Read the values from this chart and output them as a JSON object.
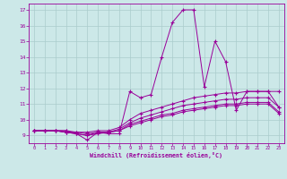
{
  "xlabel": "Windchill (Refroidissement éolien,°C)",
  "bg_color": "#cce8e8",
  "line_color": "#990099",
  "grid_color": "#aacccc",
  "xmin": 0,
  "xmax": 23,
  "ymin": 9,
  "ymax": 17,
  "yticks": [
    9,
    10,
    11,
    12,
    13,
    14,
    15,
    16,
    17
  ],
  "xticks": [
    0,
    1,
    2,
    3,
    4,
    5,
    6,
    7,
    8,
    9,
    10,
    11,
    12,
    13,
    14,
    15,
    16,
    17,
    18,
    19,
    20,
    21,
    22,
    23
  ],
  "lines": [
    [
      9.3,
      9.3,
      9.3,
      9.3,
      9.1,
      8.7,
      9.2,
      9.1,
      9.1,
      11.8,
      11.4,
      11.6,
      14.0,
      16.2,
      17.0,
      17.0,
      12.1,
      15.0,
      13.7,
      10.6,
      11.8,
      11.8,
      11.8,
      10.8
    ],
    [
      9.3,
      9.3,
      9.3,
      9.3,
      9.2,
      9.2,
      9.3,
      9.3,
      9.5,
      10.0,
      10.4,
      10.6,
      10.8,
      11.0,
      11.2,
      11.4,
      11.5,
      11.6,
      11.7,
      11.7,
      11.8,
      11.8,
      11.8,
      11.8
    ],
    [
      9.3,
      9.3,
      9.3,
      9.2,
      9.2,
      9.1,
      9.2,
      9.2,
      9.4,
      9.8,
      10.1,
      10.3,
      10.5,
      10.7,
      10.9,
      11.0,
      11.1,
      11.2,
      11.3,
      11.3,
      11.4,
      11.4,
      11.4,
      10.8
    ],
    [
      9.3,
      9.3,
      9.3,
      9.2,
      9.1,
      9.0,
      9.2,
      9.2,
      9.3,
      9.7,
      9.9,
      10.1,
      10.3,
      10.4,
      10.6,
      10.7,
      10.8,
      10.9,
      11.0,
      11.0,
      11.1,
      11.1,
      11.1,
      10.5
    ],
    [
      9.3,
      9.3,
      9.3,
      9.2,
      9.1,
      9.0,
      9.1,
      9.2,
      9.3,
      9.6,
      9.8,
      10.0,
      10.2,
      10.3,
      10.5,
      10.6,
      10.7,
      10.8,
      10.9,
      10.9,
      11.0,
      11.0,
      11.0,
      10.4
    ]
  ]
}
